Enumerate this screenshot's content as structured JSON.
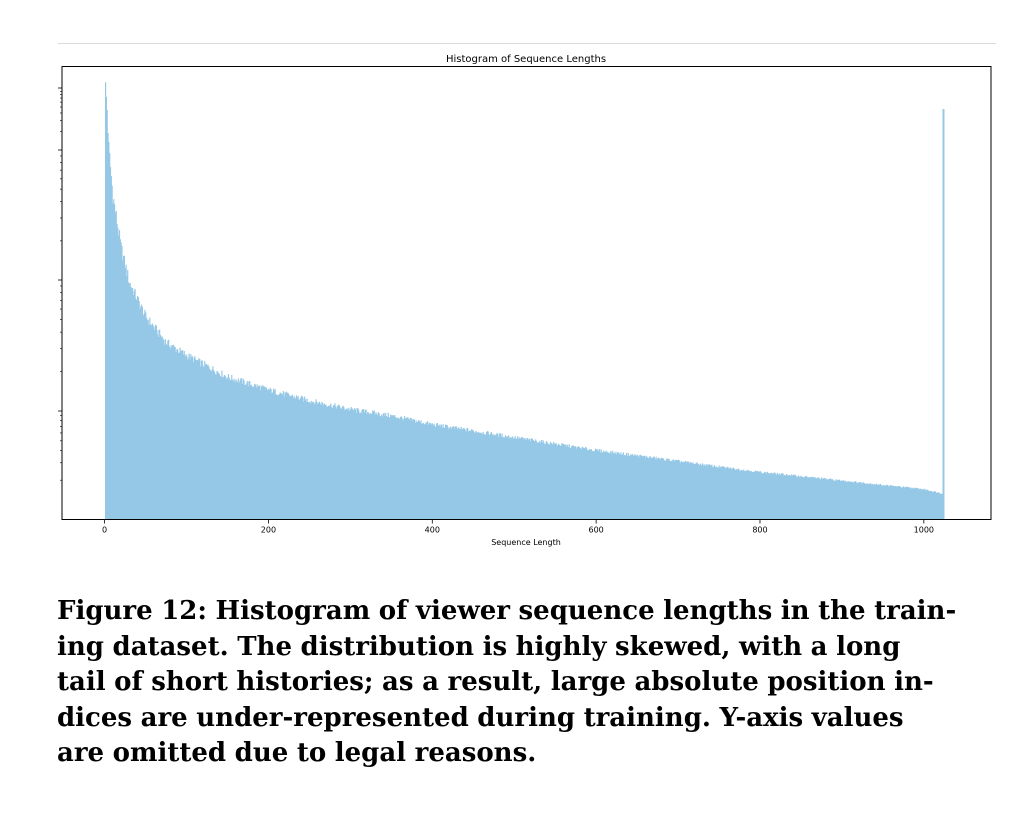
{
  "chart_data": {
    "type": "bar",
    "title": "Histogram of Sequence Lengths",
    "xlabel": "Sequence Length",
    "ylabel": "",
    "xlim": [
      -52,
      1082
    ],
    "x_ticks": [
      0,
      200,
      400,
      600,
      800,
      1000
    ],
    "x_tick_labels": [
      "0",
      "200",
      "400",
      "600",
      "800",
      "1000"
    ],
    "y_axis_values_shown": false,
    "y_scale": "log",
    "bar_color": "#95c8e6",
    "grid": false,
    "profile": {
      "x": [
        1,
        3,
        5,
        10,
        20,
        30,
        50,
        75,
        100,
        150,
        200,
        250,
        300,
        350,
        400,
        450,
        500,
        550,
        600,
        650,
        700,
        750,
        800,
        850,
        900,
        950,
        1000,
        1023
      ],
      "relative_height": [
        1.0,
        0.95,
        0.86,
        0.75,
        0.63,
        0.55,
        0.47,
        0.41,
        0.38,
        0.33,
        0.3,
        0.275,
        0.255,
        0.24,
        0.22,
        0.205,
        0.19,
        0.175,
        0.16,
        0.148,
        0.135,
        0.122,
        0.11,
        0.1,
        0.09,
        0.08,
        0.07,
        0.06
      ]
    },
    "spike": {
      "x": 1024,
      "relative_height": 0.95
    }
  },
  "caption": {
    "lines": [
      "Figure 12: Histogram of viewer sequence lengths in the train-",
      "ing dataset. The distribution is highly skewed, with a long",
      "tail of short histories; as a result, large absolute position in-",
      "dices are under-represented during training. Y-axis values",
      "are omitted due to legal reasons."
    ]
  }
}
